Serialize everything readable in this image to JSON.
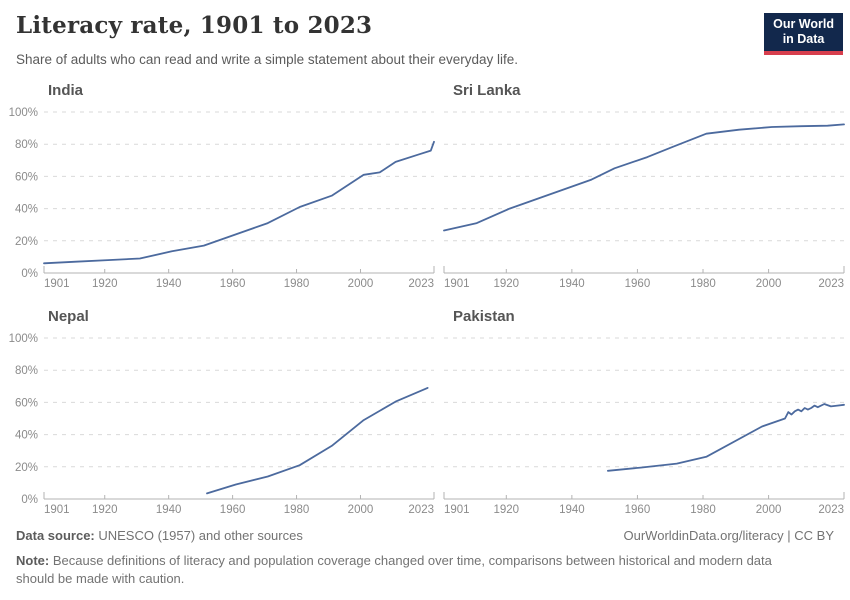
{
  "header": {
    "title": "Literacy rate, 1901 to 2023",
    "subtitle": "Share of adults who can read and write a simple statement about their everyday life.",
    "logo": {
      "line1": "Our World",
      "line2": "in Data"
    }
  },
  "axes": {
    "x_domain": [
      1901,
      2023
    ],
    "y_domain": [
      0,
      100
    ],
    "x_ticks": [
      1901,
      1920,
      1940,
      1960,
      1980,
      2000,
      2023
    ],
    "y_ticks": [
      0,
      20,
      40,
      60,
      80,
      100
    ],
    "y_suffix": "%",
    "grid": "dashed"
  },
  "chart_data": [
    {
      "type": "line",
      "title": "India",
      "show_y_axis_labels": true,
      "ylim": [
        0,
        100
      ],
      "points": [
        [
          1901,
          6
        ],
        [
          1911,
          7
        ],
        [
          1921,
          8
        ],
        [
          1931,
          9
        ],
        [
          1941,
          13.5
        ],
        [
          1951,
          17
        ],
        [
          1961,
          24
        ],
        [
          1971,
          31
        ],
        [
          1981,
          41
        ],
        [
          1991,
          48
        ],
        [
          2001,
          61
        ],
        [
          2006,
          62.5
        ],
        [
          2011,
          69
        ],
        [
          2018,
          73.5
        ],
        [
          2022,
          76
        ],
        [
          2023,
          81.5
        ]
      ]
    },
    {
      "type": "line",
      "title": "Sri Lanka",
      "show_y_axis_labels": false,
      "ylim": [
        0,
        100
      ],
      "points": [
        [
          1901,
          26.4
        ],
        [
          1911,
          31
        ],
        [
          1921,
          40
        ],
        [
          1946,
          58
        ],
        [
          1953,
          65
        ],
        [
          1963,
          72
        ],
        [
          1971,
          78.5
        ],
        [
          1981,
          86.5
        ],
        [
          1991,
          89
        ],
        [
          2001,
          90.7
        ],
        [
          2010,
          91.2
        ],
        [
          2018,
          91.5
        ],
        [
          2023,
          92.3
        ]
      ]
    },
    {
      "type": "line",
      "title": "Nepal",
      "show_y_axis_labels": true,
      "ylim": [
        0,
        100
      ],
      "points": [
        [
          1952,
          3.5
        ],
        [
          1961,
          9
        ],
        [
          1971,
          14
        ],
        [
          1981,
          21
        ],
        [
          1991,
          33
        ],
        [
          2001,
          49
        ],
        [
          2011,
          60.5
        ],
        [
          2021,
          69
        ]
      ]
    },
    {
      "type": "line",
      "title": "Pakistan",
      "show_y_axis_labels": false,
      "ylim": [
        0,
        100
      ],
      "points": [
        [
          1951,
          17.5
        ],
        [
          1961,
          19.5
        ],
        [
          1972,
          22
        ],
        [
          1981,
          26.2
        ],
        [
          1998,
          45
        ],
        [
          2005,
          50
        ],
        [
          2006,
          54
        ],
        [
          2007,
          52.5
        ],
        [
          2008,
          54.5
        ],
        [
          2009,
          55.5
        ],
        [
          2010,
          54.5
        ],
        [
          2011,
          56.5
        ],
        [
          2012,
          55.5
        ],
        [
          2013,
          56.5
        ],
        [
          2014,
          58
        ],
        [
          2015,
          57
        ],
        [
          2017,
          59
        ],
        [
          2019,
          57.5
        ],
        [
          2021,
          58
        ],
        [
          2023,
          58.5
        ]
      ]
    }
  ],
  "colors": {
    "line": "#4c6a9e",
    "grid": "#d9d9d9",
    "axis": "#b3b3b3",
    "tick_label": "#8b8b8b",
    "logo_bg": "#12284c",
    "logo_bar": "#d73e4d"
  },
  "footer": {
    "source_label": "Data source:",
    "source_text": " UNESCO (1957) and other sources",
    "link": "OurWorldinData.org/literacy | CC BY",
    "note_label": "Note:",
    "note_text": " Because definitions of literacy and population coverage changed over time, comparisons between historical and modern data should be made with caution."
  }
}
